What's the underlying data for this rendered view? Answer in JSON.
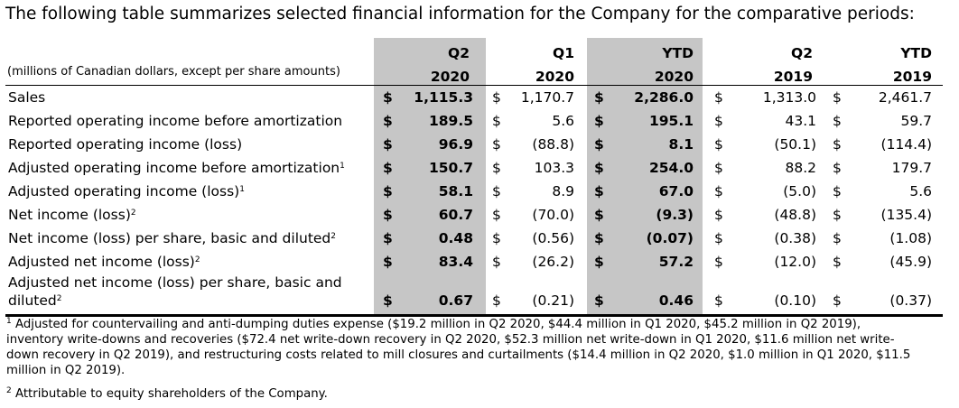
{
  "intro": "The following table summarizes selected financial information for the Company for the comparative periods:",
  "units_label": "(millions of Canadian dollars, except per share amounts)",
  "columns": [
    {
      "line1": "Q2",
      "line2": "2020",
      "shaded": true
    },
    {
      "line1": "Q1",
      "line2": "2020",
      "shaded": false
    },
    {
      "line1": "YTD",
      "line2": "2020",
      "shaded": true
    },
    {
      "line1": "Q2",
      "line2": "2019",
      "shaded": false
    },
    {
      "line1": "YTD",
      "line2": "2019",
      "shaded": false
    }
  ],
  "currency_symbol": "$",
  "rows": [
    {
      "label": "Sales",
      "sup": "",
      "values": [
        "1,115.3",
        "1,170.7",
        "2,286.0",
        "1,313.0",
        "2,461.7"
      ]
    },
    {
      "label": "Reported operating income before amortization",
      "sup": "",
      "values": [
        "189.5",
        "5.6",
        "195.1",
        "43.1",
        "59.7"
      ]
    },
    {
      "label": "Reported operating income (loss)",
      "sup": "",
      "values": [
        "96.9",
        "(88.8)",
        "8.1",
        "(50.1)",
        "(114.4)"
      ]
    },
    {
      "label": "Adjusted operating income before amortization",
      "sup": "1",
      "values": [
        "150.7",
        "103.3",
        "254.0",
        "88.2",
        "179.7"
      ]
    },
    {
      "label": "Adjusted operating income (loss)",
      "sup": "1",
      "values": [
        "58.1",
        "8.9",
        "67.0",
        "(5.0)",
        "5.6"
      ]
    },
    {
      "label": "Net income (loss)",
      "sup": "2",
      "values": [
        "60.7",
        "(70.0)",
        "(9.3)",
        "(48.8)",
        "(135.4)"
      ]
    },
    {
      "label": "Net income (loss) per share, basic and diluted",
      "sup": "2",
      "values": [
        "0.48",
        "(0.56)",
        "(0.07)",
        "(0.38)",
        "(1.08)"
      ]
    },
    {
      "label": "Adjusted net income (loss)",
      "sup": "2",
      "values": [
        "83.4",
        "(26.2)",
        "57.2",
        "(12.0)",
        "(45.9)"
      ]
    },
    {
      "label_line1": "Adjusted net income (loss) per share, basic and",
      "label_line2": "diluted",
      "sup": "2",
      "values": [
        "0.67",
        "(0.21)",
        "0.46",
        "(0.10)",
        "(0.37)"
      ]
    }
  ],
  "footnotes": [
    {
      "marker": "1",
      "lines": [
        "Adjusted for countervailing and anti-dumping duties expense ($19.2 million in Q2 2020, $44.4 million in Q1 2020, $45.2 million in Q2 2019),",
        "inventory write-downs and recoveries ($72.4 net write-down recovery in Q2 2020, $52.3 million net write-down in Q1 2020, $11.6 million net write-",
        "down recovery in Q2 2019), and restructuring costs related to mill closures and curtailments ($14.4 million in Q2 2020, $1.0 million in Q1 2020, $11.5",
        "million in Q2 2019)."
      ]
    },
    {
      "marker": "2",
      "lines": [
        "Attributable to equity shareholders of the Company."
      ]
    }
  ]
}
